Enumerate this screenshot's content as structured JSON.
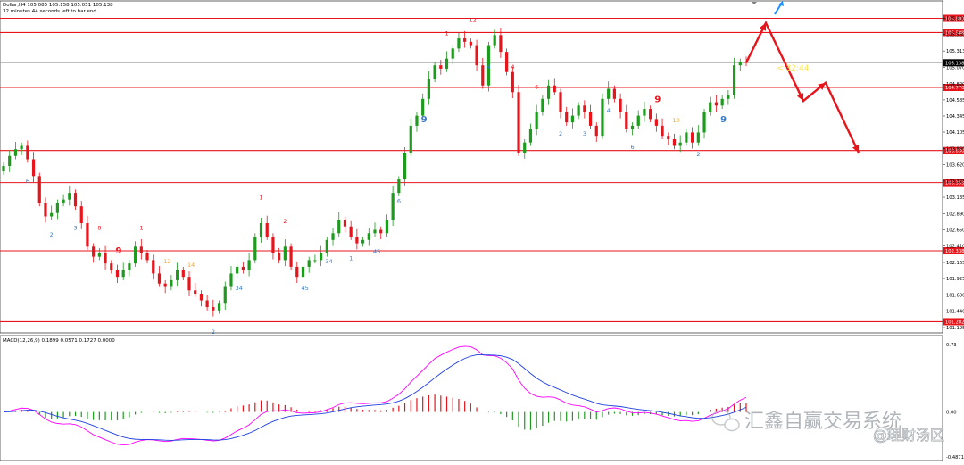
{
  "header": {
    "line1": "Dollar,H4  105.085 105.158 105.051 105.138",
    "line2": "32 minutes 44 seconds left to bar end"
  },
  "chart_data": {
    "type": "candlestick",
    "symbol": "Dollar",
    "timeframe": "H4",
    "ohlc_readout": {
      "open": 105.085,
      "high": 105.158,
      "low": 105.051,
      "close": 105.138
    },
    "y_ticks": [
      "105.800",
      "105.560",
      "105.313",
      "105.070",
      "104.820",
      "104.585",
      "104.345",
      "104.105",
      "103.860",
      "103.620",
      "103.375",
      "103.135",
      "102.890",
      "102.650",
      "102.410",
      "102.165",
      "101.925",
      "101.680",
      "101.440",
      "101.195"
    ],
    "ylim": [
      101.195,
      105.82
    ],
    "h_levels": [
      {
        "value": 105.8,
        "label": "105.800",
        "color": "#e8141b"
      },
      {
        "value": 105.588,
        "label": "105.588",
        "color": "#e8141b"
      },
      {
        "value": 104.77,
        "label": "104.770",
        "color": "#e8141b"
      },
      {
        "value": 103.83,
        "label": "103.830",
        "color": "#e8141b"
      },
      {
        "value": 103.353,
        "label": "103.353",
        "color": "#e8141b"
      },
      {
        "value": 102.338,
        "label": "102.338",
        "color": "#e8141b"
      },
      {
        "value": 101.282,
        "label": "101.282",
        "color": "#e8141b"
      }
    ],
    "current_price": {
      "value": 105.138,
      "label": "105.138"
    },
    "timer_text": "< 32:44",
    "projection_path": [
      105.73,
      104.57,
      104.84,
      103.8
    ],
    "candles_close": [
      103.6,
      103.75,
      103.85,
      103.9,
      103.7,
      103.45,
      103.05,
      102.85,
      102.9,
      103.05,
      103.1,
      103.2,
      103.0,
      102.75,
      102.4,
      102.25,
      102.3,
      102.15,
      102.05,
      101.95,
      102.05,
      102.15,
      102.4,
      102.3,
      102.2,
      102.0,
      101.85,
      101.8,
      101.9,
      102.05,
      101.95,
      101.75,
      101.7,
      101.6,
      101.5,
      101.45,
      101.55,
      101.8,
      102.0,
      102.1,
      102.05,
      102.2,
      102.55,
      102.75,
      102.55,
      102.3,
      102.2,
      102.4,
      102.1,
      101.95,
      102.1,
      102.2,
      102.2,
      102.3,
      102.5,
      102.6,
      102.8,
      102.7,
      102.55,
      102.45,
      102.5,
      102.6,
      102.65,
      102.6,
      102.8,
      103.2,
      103.4,
      103.8,
      104.2,
      104.35,
      104.6,
      104.9,
      105.1,
      105.05,
      105.2,
      105.35,
      105.5,
      105.45,
      105.4,
      105.1,
      104.8,
      105.4,
      105.55,
      105.3,
      105.0,
      104.7,
      103.8,
      103.95,
      104.15,
      104.4,
      104.6,
      104.8,
      104.7,
      104.4,
      104.25,
      104.35,
      104.5,
      104.4,
      104.2,
      104.05,
      104.6,
      104.75,
      104.6,
      104.4,
      104.15,
      104.2,
      104.35,
      104.45,
      104.3,
      104.2,
      104.05,
      104.0,
      103.9,
      103.95,
      104.1,
      103.95,
      104.1,
      104.4,
      104.55,
      104.5,
      104.6,
      104.65,
      105.1,
      105.15,
      105.138
    ],
    "td_counts": [
      {
        "text": "6",
        "color": "#3b7bc4"
      },
      {
        "text": "2",
        "color": "#3b7bc4"
      },
      {
        "text": "3",
        "color": "#3b7bc4"
      },
      {
        "text": "8",
        "color": "#e8141b"
      },
      {
        "text": "9",
        "color": "#e8141b"
      },
      {
        "text": "1",
        "color": "#e8141b"
      },
      {
        "text": "12",
        "color": "#e8a53b"
      },
      {
        "text": "14",
        "color": "#e8a53b"
      },
      {
        "text": "2",
        "color": "#3b7bc4"
      },
      {
        "text": "34",
        "color": "#3b7bc4"
      },
      {
        "text": "1",
        "color": "#e8141b"
      },
      {
        "text": "2",
        "color": "#e8141b"
      },
      {
        "text": "45",
        "color": "#3b7bc4"
      },
      {
        "text": "34",
        "color": "#3b7bc4"
      },
      {
        "text": "1",
        "color": "#3b7bc4"
      },
      {
        "text": "45",
        "color": "#3b7bc4"
      },
      {
        "text": "6",
        "color": "#3b7bc4"
      },
      {
        "text": "9",
        "color": "#3b7bc4"
      },
      {
        "text": "1",
        "color": "#e8141b"
      },
      {
        "text": "12",
        "color": "#e8141b"
      },
      {
        "text": "4",
        "color": "#3b7bc4"
      },
      {
        "text": "4",
        "color": "#e8141b"
      },
      {
        "text": "6",
        "color": "#e8141b"
      },
      {
        "text": "2",
        "color": "#3b7bc4"
      },
      {
        "text": "3",
        "color": "#3b7bc4"
      },
      {
        "text": "4",
        "color": "#3b7bc4"
      },
      {
        "text": "6",
        "color": "#3b7bc4"
      },
      {
        "text": "9",
        "color": "#e8141b"
      },
      {
        "text": "10",
        "color": "#e8a53b"
      },
      {
        "text": "2",
        "color": "#3b7bc4"
      },
      {
        "text": "9",
        "color": "#3b7bc4"
      }
    ],
    "macd": {
      "label": "MACD(12,26,9) 0.1899 0.0571 0.1727 0.0000",
      "params": "12,26,9",
      "values": [
        0.1899,
        0.0571,
        0.1727,
        0.0
      ],
      "ylabels": [
        "0.73",
        "0.00",
        "-0.4871"
      ],
      "ylim": [
        -0.4871,
        0.73
      ],
      "main_line_color": "#ff00ff",
      "signal_line_color": "#1f3fe0",
      "hist_pos_color": "#e8141b",
      "hist_neg_color": "#1e9a1e"
    },
    "x_ticks": []
  },
  "watermark": {
    "brand": "汇鑫自赢交易系统",
    "handle": "@理财汤区"
  },
  "colors": {
    "bull": "#1e9a1e",
    "bear": "#e8141b",
    "level_line": "#e8141b",
    "price_label_bg": "#e8141b",
    "projection": "#e8141b",
    "arrow_up": "#1e90ff",
    "grid_sep": "#000000"
  }
}
